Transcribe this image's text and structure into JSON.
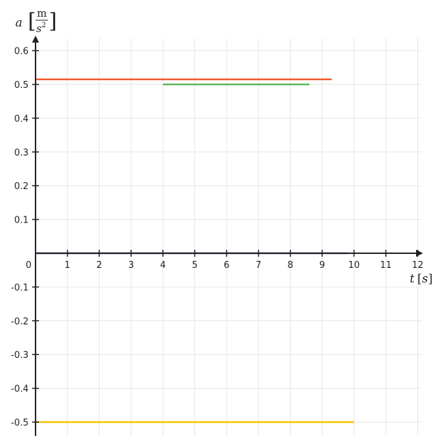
{
  "chart_data": {
    "type": "line",
    "xlabel": {
      "var": "t",
      "unit": "s"
    },
    "ylabel": {
      "var": "a",
      "unit_num": "m",
      "unit_den_base": "s",
      "unit_den_exp": "2"
    },
    "x_ticks": [
      0,
      1,
      2,
      3,
      4,
      5,
      6,
      7,
      8,
      9,
      10,
      11,
      12
    ],
    "x_tick_labels": [
      "0",
      "1",
      "2",
      "3",
      "4",
      "5",
      "6",
      "7",
      "8",
      "9",
      "10",
      "11",
      "12"
    ],
    "y_ticks": [
      0.6,
      0.5,
      0.4,
      0.3,
      0.2,
      0.1,
      -0.1,
      -0.2,
      -0.3,
      -0.4,
      -0.5
    ],
    "y_tick_labels": [
      "0.6",
      "0.5",
      "0.4",
      "0.3",
      "0.2",
      "0.1",
      "-0.1",
      "-0.2",
      "-0.3",
      "-0.4",
      "-0.5"
    ],
    "xlim": [
      0,
      12
    ],
    "ylim": [
      -0.55,
      0.63
    ],
    "grid": true,
    "series": [
      {
        "color": "#f05a32",
        "x": [
          0,
          9.3
        ],
        "y": [
          0.515,
          0.515
        ]
      },
      {
        "color": "#5cb85c",
        "x": [
          4,
          8.6
        ],
        "y": [
          0.5,
          0.5
        ]
      },
      {
        "color": "#4a6fa5",
        "x": [
          0,
          9.8
        ],
        "y": [
          0,
          0
        ]
      },
      {
        "color": "#f2c600",
        "x": [
          0,
          10
        ],
        "y": [
          -0.5,
          -0.5
        ]
      }
    ]
  }
}
